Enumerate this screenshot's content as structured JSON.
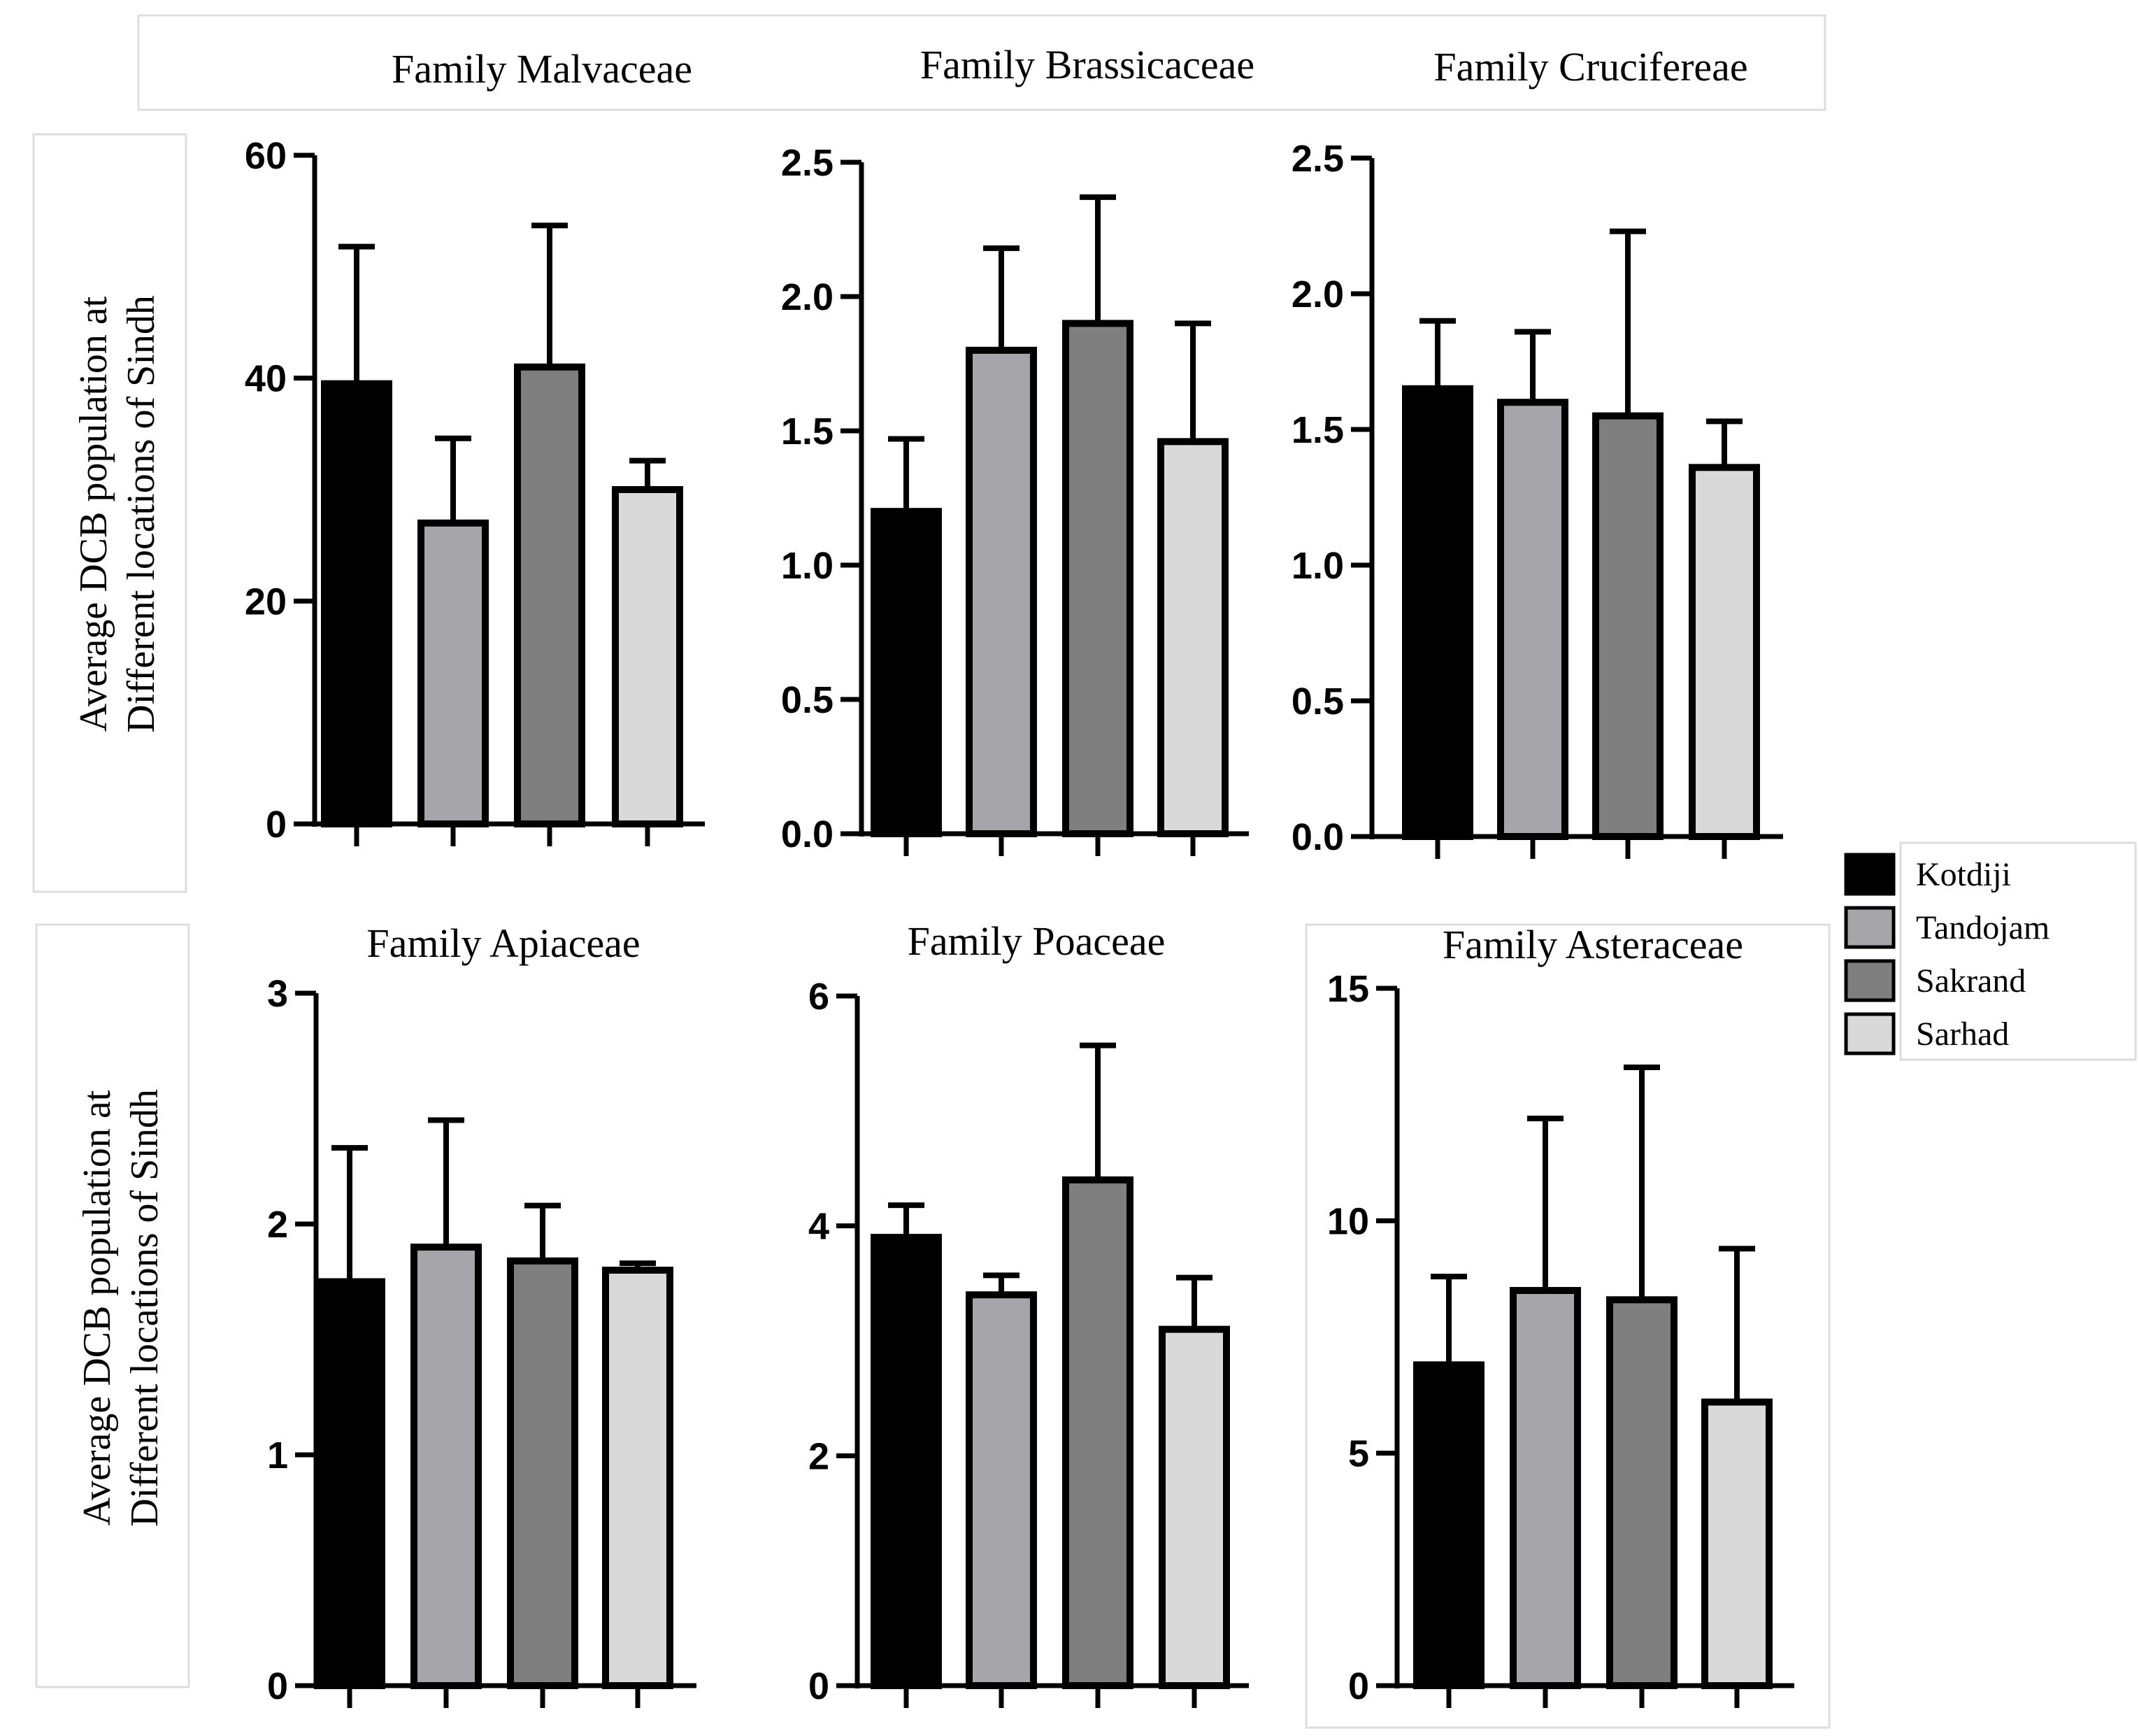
{
  "legend": {
    "items": [
      {
        "label": "Kotdiji",
        "color": "#000000"
      },
      {
        "label": "Tandojam",
        "color": "#a6a6aa"
      },
      {
        "label": "Sakrand",
        "color": "#7f7f7f"
      },
      {
        "label": "Sarhad",
        "color": "#d9d9d9"
      }
    ]
  },
  "row_labels": {
    "top": [
      "Average DCB population at",
      "Different locations of Sindh"
    ],
    "bottom": [
      "Average DCB population at",
      "Different locations of Sindh"
    ]
  },
  "chart_data": [
    {
      "type": "bar",
      "title": "Family Malvaceae",
      "categories": [
        "Kotdiji",
        "Tandojam",
        "Sakrand",
        "Sarhad"
      ],
      "values": [
        39.5,
        27.0,
        41.0,
        30.0
      ],
      "errors": [
        12.3,
        7.6,
        12.7,
        2.6
      ],
      "ylim": [
        0,
        60
      ],
      "yticks": [
        0,
        20,
        40,
        60
      ],
      "ytick_labels": [
        "0",
        "20",
        "40",
        "60"
      ]
    },
    {
      "type": "bar",
      "title": "Family Brassicaceae",
      "categories": [
        "Kotdiji",
        "Tandojam",
        "Sakrand",
        "Sarhad"
      ],
      "values": [
        1.2,
        1.8,
        1.9,
        1.46
      ],
      "errors": [
        0.27,
        0.38,
        0.47,
        0.44
      ],
      "ylim": [
        0,
        2.5
      ],
      "yticks": [
        0,
        0.5,
        1.0,
        1.5,
        2.0,
        2.5
      ],
      "ytick_labels": [
        "0.0",
        "0.5",
        "1.0",
        "1.5",
        "2.0",
        "2.5"
      ]
    },
    {
      "type": "bar",
      "title": "Family Crucifereae",
      "categories": [
        "Kotdiji",
        "Tandojam",
        "Sakrand",
        "Sarhad"
      ],
      "values": [
        1.65,
        1.6,
        1.55,
        1.36
      ],
      "errors": [
        0.25,
        0.26,
        0.68,
        0.17
      ],
      "ylim": [
        0,
        2.5
      ],
      "yticks": [
        0,
        0.5,
        1.0,
        1.5,
        2.0,
        2.5
      ],
      "ytick_labels": [
        "0.0",
        "0.5",
        "1.0",
        "1.5",
        "2.0",
        "2.5"
      ]
    },
    {
      "type": "bar",
      "title": "Family Apiaceae",
      "categories": [
        "Kotdiji",
        "Tandojam",
        "Sakrand",
        "Sarhad"
      ],
      "values": [
        1.75,
        1.9,
        1.84,
        1.8
      ],
      "errors": [
        0.58,
        0.55,
        0.24,
        0.03
      ],
      "ylim": [
        0,
        3
      ],
      "yticks": [
        0,
        1,
        2,
        3
      ],
      "ytick_labels": [
        "0",
        "1",
        "2",
        "3"
      ]
    },
    {
      "type": "bar",
      "title": "Family Poaceae",
      "categories": [
        "Kotdiji",
        "Tandojam",
        "Sakrand",
        "Sarhad"
      ],
      "values": [
        3.9,
        3.4,
        4.4,
        3.1
      ],
      "errors": [
        0.28,
        0.17,
        1.17,
        0.45
      ],
      "ylim": [
        0,
        6
      ],
      "yticks": [
        0,
        2,
        4,
        6
      ],
      "ytick_labels": [
        "0",
        "2",
        "4",
        "6"
      ]
    },
    {
      "type": "bar",
      "title": "Family Asteraceae",
      "categories": [
        "Kotdiji",
        "Tandojam",
        "Sakrand",
        "Sarhad"
      ],
      "values": [
        6.9,
        8.5,
        8.3,
        6.1
      ],
      "errors": [
        1.9,
        3.7,
        5.0,
        3.3
      ],
      "ylim": [
        0,
        15
      ],
      "yticks": [
        0,
        5,
        10,
        15
      ],
      "ytick_labels": [
        "0",
        "5",
        "10",
        "15"
      ]
    }
  ]
}
